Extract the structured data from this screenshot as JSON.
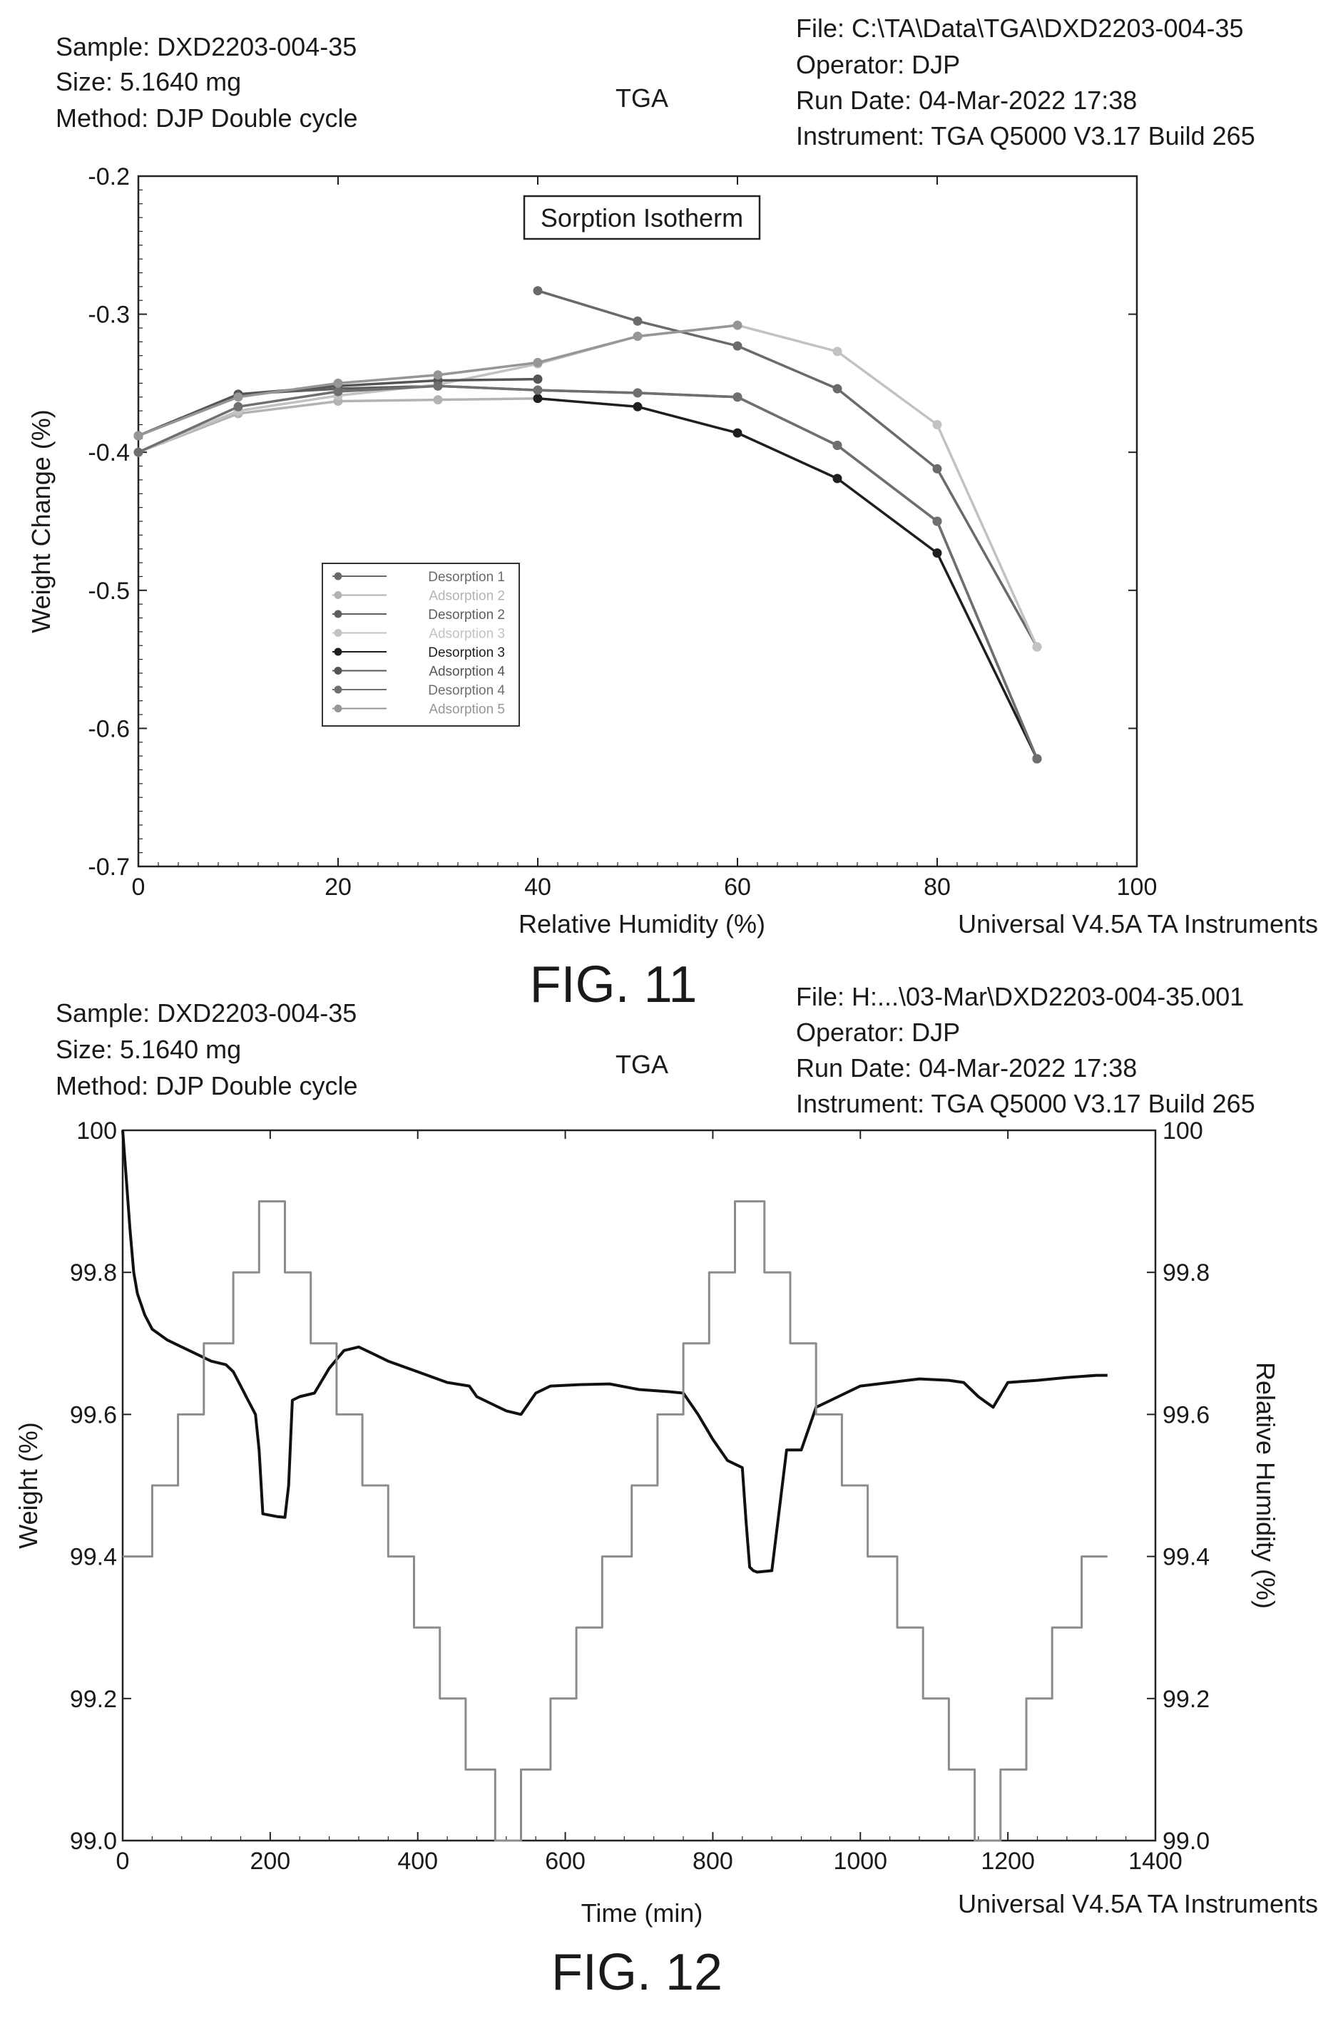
{
  "figures": [
    {
      "header": {
        "sample": "Sample: DXD2203-004-35",
        "size": "Size: 5.1640 mg",
        "method": "Method: DJP Double cycle",
        "center": "TGA",
        "file": "File: C:\\TA\\Data\\TGA\\DXD2203-004-35",
        "operator": "Operator: DJP",
        "run_date": "Run Date: 04-Mar-2022 17:38",
        "instrument": "Instrument: TGA Q5000 V3.17 Build 265"
      },
      "footer": "Universal V4.5A TA Instruments",
      "caption": "FIG. 11"
    },
    {
      "header": {
        "sample": "Sample: DXD2203-004-35",
        "size": "Size: 5.1640 mg",
        "method": "Method: DJP Double cycle",
        "center": "TGA",
        "file": "File: H:...\\03-Mar\\DXD2203-004-35.001",
        "operator": "Operator: DJP",
        "run_date": "Run Date: 04-Mar-2022 17:38",
        "instrument": "Instrument: TGA Q5000 V3.17 Build 265"
      },
      "footer": "Universal V4.5A TA Instruments",
      "caption": "FIG. 12"
    }
  ],
  "chart_data": [
    {
      "type": "line",
      "title": "Sorption Isotherm",
      "xlabel": "Relative Humidity (%)",
      "ylabel": "Weight Change (%)",
      "xlim": [
        0,
        100
      ],
      "ylim": [
        -0.7,
        -0.2
      ],
      "xticks": [
        "0",
        "20",
        "40",
        "60",
        "80",
        "100"
      ],
      "yticks": [
        "-0.2",
        "-0.3",
        "-0.4",
        "-0.5",
        "-0.6",
        "-0.7"
      ],
      "legend_position": "lower-left",
      "series": [
        {
          "name": "Desorption 1",
          "color": "#6a6a6a",
          "x": [
            90,
            80,
            70,
            60,
            50,
            40
          ],
          "y": [
            -0.541,
            -0.412,
            -0.354,
            -0.323,
            -0.305,
            -0.283
          ]
        },
        {
          "name": "Adsorption 2",
          "color": "#b3b3b3",
          "x": [
            0,
            10,
            20,
            30,
            40
          ],
          "y": [
            -0.4,
            -0.372,
            -0.363,
            -0.362,
            -0.361
          ]
        },
        {
          "name": "Desorption 2",
          "color": "#5e5e5e",
          "x": [
            90,
            80,
            70,
            60,
            50,
            40,
            30,
            20,
            10,
            0
          ],
          "y": [
            -0.622,
            -0.45,
            -0.395,
            -0.36,
            -0.357,
            -0.355,
            -0.352,
            -0.354,
            -0.358,
            -0.388
          ]
        },
        {
          "name": "Adsorption 3",
          "color": "#c2c2c2",
          "x": [
            0,
            10,
            20,
            30,
            40,
            50,
            60,
            70,
            80,
            90
          ],
          "y": [
            -0.4,
            -0.37,
            -0.359,
            -0.351,
            -0.336,
            -0.316,
            -0.308,
            -0.327,
            -0.38,
            -0.541
          ]
        },
        {
          "name": "Desorption 3",
          "color": "#1f1f1f",
          "x": [
            90,
            80,
            70,
            60,
            50,
            40
          ],
          "y": [
            -0.622,
            -0.473,
            -0.419,
            -0.386,
            -0.367,
            -0.361
          ]
        },
        {
          "name": "Adsorption 4",
          "color": "#555555",
          "x": [
            0,
            10,
            20,
            30,
            40
          ],
          "y": [
            -0.388,
            -0.358,
            -0.352,
            -0.348,
            -0.347
          ]
        },
        {
          "name": "Desorption 4",
          "color": "#6f6f6f",
          "x": [
            90,
            80,
            70,
            60,
            50,
            40,
            30,
            20,
            10,
            0
          ],
          "y": [
            -0.622,
            -0.45,
            -0.395,
            -0.36,
            -0.357,
            -0.355,
            -0.352,
            -0.356,
            -0.367,
            -0.4
          ]
        },
        {
          "name": "Adsorption 5",
          "color": "#969696",
          "x": [
            0,
            10,
            20,
            30,
            40,
            50,
            60
          ],
          "y": [
            -0.388,
            -0.36,
            -0.35,
            -0.344,
            -0.335,
            -0.316,
            -0.308
          ]
        }
      ]
    },
    {
      "type": "line",
      "title": "",
      "xlabel": "Time (min)",
      "ylabel": "Weight (%)",
      "y2label": "Relative Humidity (%)",
      "xlim": [
        0,
        1400
      ],
      "ylim": [
        99.0,
        100
      ],
      "y2lim": [
        99.0,
        100
      ],
      "xticks": [
        "0",
        "200",
        "400",
        "600",
        "800",
        "1000",
        "1200",
        "1400"
      ],
      "yticks": [
        "100",
        "99.8",
        "99.6",
        "99.4",
        "99.2",
        "99.0"
      ],
      "y2ticks": [
        "100",
        "99.8",
        "99.6",
        "99.4",
        "99.2",
        "99.0"
      ],
      "series": [
        {
          "name": "Weight",
          "color": "#111111",
          "axis": "left",
          "x": [
            0,
            5,
            10,
            15,
            20,
            30,
            40,
            60,
            80,
            100,
            120,
            140,
            150,
            160,
            170,
            180,
            185,
            190,
            200,
            210,
            220,
            225,
            230,
            240,
            260,
            280,
            300,
            320,
            340,
            360,
            400,
            440,
            470,
            480,
            500,
            520,
            540,
            560,
            580,
            620,
            660,
            700,
            740,
            760,
            780,
            800,
            820,
            840,
            845,
            850,
            855,
            860,
            880,
            900,
            920,
            940,
            960,
            1000,
            1040,
            1080,
            1120,
            1140,
            1150,
            1160,
            1180,
            1200,
            1240,
            1280,
            1320,
            1335
          ],
          "y": [
            100,
            99.93,
            99.86,
            99.8,
            99.77,
            99.74,
            99.72,
            99.705,
            99.695,
            99.685,
            99.675,
            99.67,
            99.66,
            99.64,
            99.62,
            99.6,
            99.55,
            99.46,
            99.458,
            99.456,
            99.455,
            99.5,
            99.62,
            99.625,
            99.63,
            99.665,
            99.69,
            99.695,
            99.685,
            99.675,
            99.66,
            99.645,
            99.64,
            99.625,
            99.615,
            99.605,
            99.6,
            99.63,
            99.64,
            99.642,
            99.643,
            99.635,
            99.632,
            99.63,
            99.6,
            99.565,
            99.535,
            99.525,
            99.45,
            99.385,
            99.38,
            99.378,
            99.38,
            99.55,
            99.55,
            99.61,
            99.62,
            99.64,
            99.645,
            99.65,
            99.648,
            99.645,
            99.635,
            99.625,
            99.61,
            99.645,
            99.648,
            99.652,
            99.655,
            99.655
          ]
        },
        {
          "name": "Relative Humidity",
          "color": "#8c8c8c",
          "axis": "right",
          "step": true,
          "x": [
            0,
            40,
            75,
            110,
            150,
            185,
            220,
            255,
            290,
            325,
            360,
            395,
            430,
            465,
            505,
            540,
            580,
            615,
            650,
            690,
            725,
            760,
            795,
            830,
            870,
            905,
            940,
            975,
            1010,
            1050,
            1085,
            1120,
            1155,
            1190,
            1225,
            1260,
            1300,
            1335
          ],
          "y": [
            99.4,
            99.5,
            99.6,
            99.7,
            99.8,
            99.9,
            99.8,
            99.7,
            99.6,
            99.5,
            99.4,
            99.3,
            99.2,
            99.1,
            99.0,
            99.1,
            99.2,
            99.3,
            99.4,
            99.5,
            99.6,
            99.7,
            99.8,
            99.9,
            99.8,
            99.7,
            99.6,
            99.5,
            99.4,
            99.3,
            99.2,
            99.1,
            99.0,
            99.1,
            99.2,
            99.3,
            99.4,
            99.4
          ]
        }
      ]
    }
  ]
}
